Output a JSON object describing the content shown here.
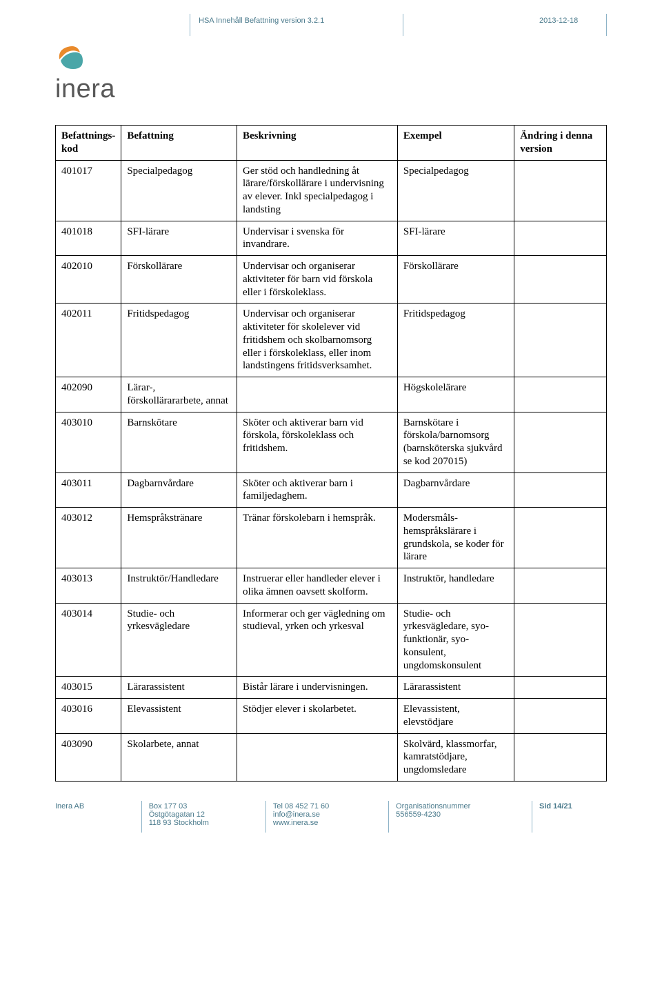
{
  "header": {
    "doc_title": "HSA Innehåll Befattning version 3.2.1",
    "date": "2013-12-18"
  },
  "logo": {
    "text": "inera",
    "color_orange": "#e98a2b",
    "color_teal": "#4aa6a8",
    "color_text": "#585858"
  },
  "table": {
    "headers": {
      "kod": "Befattnings-kod",
      "befattning": "Befattning",
      "beskrivning": "Beskrivning",
      "exempel": "Exempel",
      "andring": "Ändring i denna version"
    },
    "rows": [
      {
        "kod": "401017",
        "bef": "Specialpedagog",
        "besk": "Ger stöd och handledning åt lärare/förskollärare i undervisning av elever. Inkl specialpedagog i landsting",
        "ex": "Specialpedagog",
        "and": ""
      },
      {
        "kod": "401018",
        "bef": "SFI-lärare",
        "besk": "Undervisar i svenska för invandrare.",
        "ex": "SFI-lärare",
        "and": ""
      },
      {
        "kod": "402010",
        "bef": "Förskollärare",
        "besk": "Undervisar och organiserar aktiviteter för barn vid förskola eller i förskoleklass.",
        "ex": "Förskollärare",
        "and": ""
      },
      {
        "kod": "402011",
        "bef": "Fritidspedagog",
        "besk": "Undervisar och organiserar aktiviteter för skolelever vid fritidshem och skolbarnomsorg eller i förskoleklass, eller inom landstingens fritidsverksamhet.",
        "ex": "Fritidspedagog",
        "and": ""
      },
      {
        "kod": "402090",
        "bef": "Lärar-, förskollärararbete, annat",
        "besk": "",
        "ex": "Högskolelärare",
        "and": ""
      },
      {
        "kod": "403010",
        "bef": "Barnskötare",
        "besk": "Sköter och aktiverar barn vid förskola, förskoleklass och fritidshem.",
        "ex": "Barnskötare i förskola/barnomsorg (barnsköterska sjukvård se kod 207015)",
        "and": ""
      },
      {
        "kod": "403011",
        "bef": "Dagbarnvårdare",
        "besk": "Sköter och aktiverar barn i familjedaghem.",
        "ex": "Dagbarnvårdare",
        "and": ""
      },
      {
        "kod": "403012",
        "bef": "Hemspråkstränare",
        "besk": "Tränar förskolebarn i hemspråk.",
        "ex": "Modersmåls-hemspråkslärare i grundskola, se koder för lärare",
        "and": ""
      },
      {
        "kod": "403013",
        "bef": "Instruktör/Handledare",
        "besk": "Instruerar eller handleder elever i olika ämnen oavsett skolform.",
        "ex": "Instruktör, handledare",
        "and": ""
      },
      {
        "kod": "403014",
        "bef": "Studie- och yrkesvägledare",
        "besk": "Informerar och ger vägledning om studieval, yrken och yrkesval",
        "ex": "Studie- och yrkesvägledare, syo-funktionär, syo-konsulent, ungdomskonsulent",
        "and": ""
      },
      {
        "kod": "403015",
        "bef": "Lärarassistent",
        "besk": "Bistår lärare i undervisningen.",
        "ex": "Lärarassistent",
        "and": ""
      },
      {
        "kod": "403016",
        "bef": "Elevassistent",
        "besk": "Stödjer elever i skolarbetet.",
        "ex": "Elevassistent, elevstödjare",
        "and": ""
      },
      {
        "kod": "403090",
        "bef": "Skolarbete, annat",
        "besk": "",
        "ex": "Skolvärd, klassmorfar, kamratstödjare, ungdomsledare",
        "and": ""
      }
    ]
  },
  "footer": {
    "company": "Inera AB",
    "addr1": "Box 177 03",
    "addr2": "Östgötagatan 12",
    "addr3": "118 93 Stockholm",
    "tel": "Tel 08 452 71 60",
    "email": "info@inera.se",
    "web": "www.inera.se",
    "orgnr_label": "Organisationsnummer",
    "orgnr": "556559-4230",
    "page": "Sid 14/21"
  }
}
